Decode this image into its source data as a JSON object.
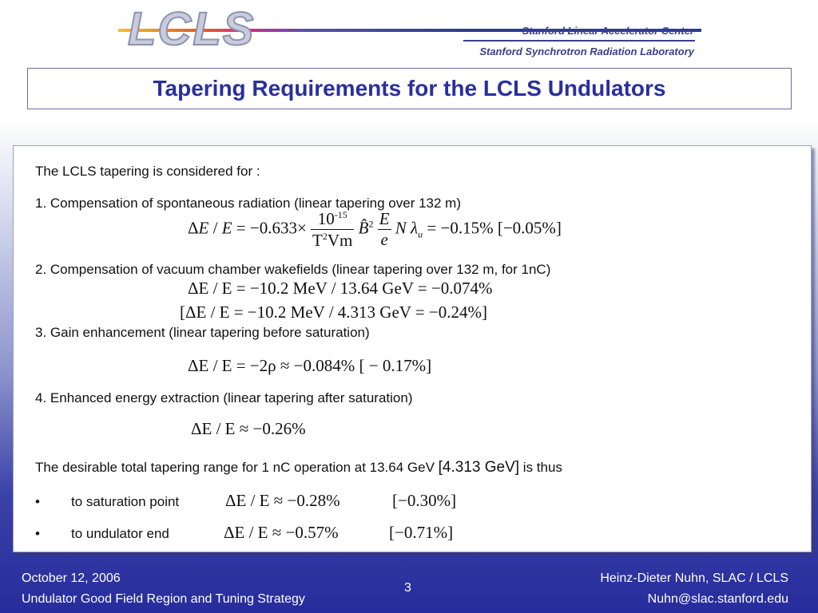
{
  "header": {
    "logo": "LCLS",
    "org_top": "Stanford Linear Accelerator Center",
    "org_bottom": "Stanford Synchrotron Radiation Laboratory",
    "title": "Tapering Requirements for the LCLS Undulators"
  },
  "content": {
    "intro": "The LCLS tapering is considered for :",
    "item1": "1.   Compensation of spontaneous radiation (linear tapering over 132 m)",
    "item2": "2.    Compensation of vacuum chamber wakefields (linear tapering over 132 m, for 1nC)",
    "eq2a": "ΔE / E = −10.2 MeV / 13.64 GeV = −0.074%",
    "eq2b": "[ΔE / E = −10.2 MeV / 4.313 GeV = −0.24%]",
    "item3": "3.   Gain enhancement (linear tapering before saturation)",
    "eq3": "ΔE / E = −2ρ ≈ −0.084% [ − 0.17%]",
    "item4": "4.    Enhanced energy extraction (linear tapering after saturation)",
    "eq4": "ΔE / E ≈ −0.26%",
    "summary_pre": "The desirable total tapering range for 1 nC operation at 13.64 GeV ",
    "summary_bracket": "[4.313 GeV]",
    "summary_post": " is thus",
    "bullet1_label": "to saturation point",
    "bullet1_eq": "ΔE / E ≈ −0.28%",
    "bullet1_bracket": "[−0.30%]",
    "bullet2_label": "to undulator end",
    "bullet2_eq": "ΔE / E ≈ −0.57%",
    "bullet2_bracket": "[−0.71%]"
  },
  "footer": {
    "date": "October 12, 2006",
    "subtitle": "Undulator Good Field Region and Tuning Strategy",
    "page": "3",
    "author": "Heinz-Dieter Nuhn, SLAC / LCLS",
    "email": "Nuhn@slac.stanford.edu"
  }
}
